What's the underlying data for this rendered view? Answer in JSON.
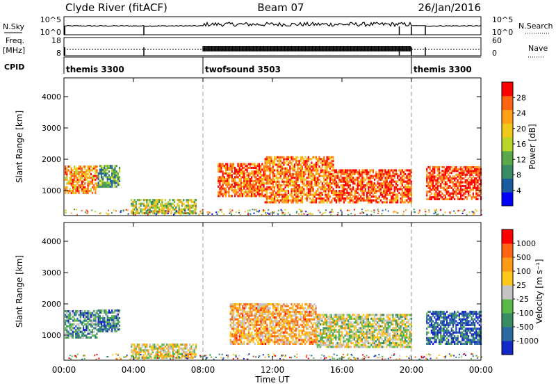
{
  "header": {
    "station": "Clyde River (fitACF)",
    "beam": "Beam 07",
    "date": "26/Jan/2016"
  },
  "sky_panel": {
    "left_label": "N.Sky",
    "left_ticks": [
      "10^5",
      "10^0"
    ],
    "right_ticks": [
      "10^5",
      "10^0"
    ],
    "right_label": "N.Search"
  },
  "freq_panel": {
    "left_label_1": "Freq.",
    "left_label_2": "[MHz]",
    "left_ticks": [
      "18",
      "8"
    ],
    "right_ticks": [
      "60",
      "0"
    ],
    "right_label": "Nave"
  },
  "cpid": {
    "label": "CPID",
    "segments": [
      {
        "name": "themis 3300",
        "start_hour": 0,
        "end_hour": 8
      },
      {
        "name": "twofsound 3503",
        "start_hour": 8,
        "end_hour": 20
      },
      {
        "name": "themis 3300",
        "start_hour": 20,
        "end_hour": 24
      }
    ]
  },
  "x_axis": {
    "label": "Time UT",
    "ticks": [
      "00:00",
      "04:00",
      "08:00",
      "12:00",
      "16:00",
      "20:00",
      "00:00"
    ]
  },
  "chart_data": [
    {
      "type": "heatmap",
      "name": "power",
      "ylabel": "Slant Range [km]",
      "yticks": [
        "1000",
        "2000",
        "3000",
        "4000"
      ],
      "xlim": [
        0,
        24
      ],
      "ylim": [
        200,
        4600
      ],
      "colorbar": {
        "label": "Power [dB]",
        "tick_labels": [
          "4",
          "8",
          "12",
          "16",
          "20",
          "24",
          "28"
        ],
        "colors": [
          "#0000ff",
          "#1c5aa0",
          "#3a8a64",
          "#5aa84a",
          "#b8d62a",
          "#f0c81a",
          "#ffa018",
          "#ff6414",
          "#ff0000"
        ]
      },
      "regions": [
        {
          "x": [
            0.0,
            1.9
          ],
          "y": [
            900,
            1800
          ],
          "level": 0.72
        },
        {
          "x": [
            1.9,
            3.2
          ],
          "y": [
            1100,
            1800
          ],
          "level": 0.35
        },
        {
          "x": [
            3.8,
            7.6
          ],
          "y": [
            250,
            700
          ],
          "level": 0.5
        },
        {
          "x": [
            8.8,
            11.5
          ],
          "y": [
            800,
            1900
          ],
          "level": 0.82
        },
        {
          "x": [
            11.5,
            15.5
          ],
          "y": [
            600,
            2100
          ],
          "level": 0.78
        },
        {
          "x": [
            15.5,
            20.0
          ],
          "y": [
            600,
            1700
          ],
          "level": 0.86
        },
        {
          "x": [
            20.8,
            24.0
          ],
          "y": [
            700,
            1800
          ],
          "level": 0.9
        }
      ]
    },
    {
      "type": "heatmap",
      "name": "velocity",
      "ylabel": "Slant Range [km]",
      "yticks": [
        "1000",
        "2000",
        "3000",
        "4000"
      ],
      "xlim": [
        0,
        24
      ],
      "ylim": [
        200,
        4600
      ],
      "colorbar": {
        "label": "Velocity [m s⁻¹]",
        "tick_labels": [
          "1000",
          "500",
          "100",
          "25",
          "-25",
          "-100",
          "-500",
          "-1000"
        ],
        "colors": [
          "#1428c8",
          "#2a6aa0",
          "#3a8c62",
          "#5ab84a",
          "#c4c4c4",
          "#ffc81a",
          "#ff9a18",
          "#ff6414",
          "#ff0000"
        ]
      },
      "regions": [
        {
          "x": [
            0.0,
            1.9
          ],
          "y": [
            900,
            1800
          ],
          "level": 0.3
        },
        {
          "x": [
            1.9,
            3.2
          ],
          "y": [
            1100,
            1800
          ],
          "level": 0.25
        },
        {
          "x": [
            3.8,
            7.6
          ],
          "y": [
            250,
            700
          ],
          "level": 0.55
        },
        {
          "x": [
            9.5,
            14.5
          ],
          "y": [
            700,
            2000
          ],
          "level": 0.68
        },
        {
          "x": [
            14.5,
            20.0
          ],
          "y": [
            600,
            1700
          ],
          "level": 0.5
        },
        {
          "x": [
            20.8,
            24.0
          ],
          "y": [
            700,
            1800
          ],
          "level": 0.15
        }
      ]
    }
  ]
}
